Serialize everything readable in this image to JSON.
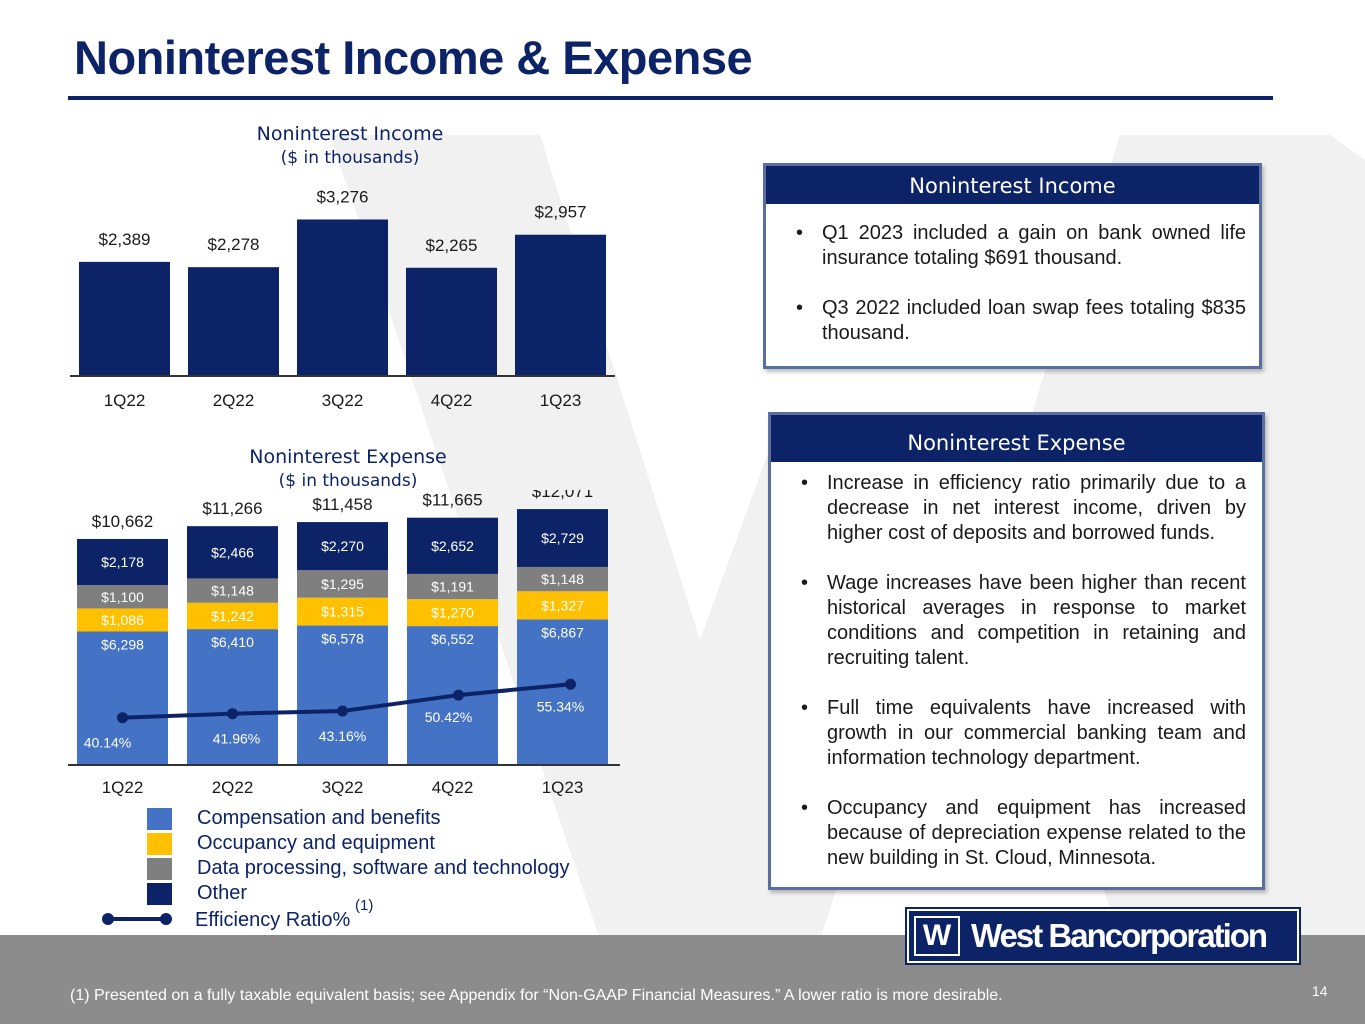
{
  "page": {
    "title": "Noninterest Income & Expense",
    "page_number": "14",
    "footnote": "(1) Presented on a fully taxable equivalent basis; see Appendix for “Non-GAAP Financial Measures.” A lower ratio is more desirable.",
    "logo_text": "West Bancorporation",
    "logo_mark": "W"
  },
  "colors": {
    "navy": "#0d2367",
    "compensation": "#4472c4",
    "occupancy": "#ffc000",
    "data_processing": "#7f7f7f",
    "other": "#0d2367",
    "footer_gray": "#8c8c8c"
  },
  "income_panel": {
    "heading": "Noninterest Income",
    "bullets": [
      "Q1 2023 included a gain on bank owned life insurance totaling $691 thousand.",
      "Q3 2022 included loan swap fees totaling $835 thousand."
    ]
  },
  "expense_panel": {
    "heading": "Noninterest Expense",
    "bullets": [
      "Increase in efficiency ratio primarily due to a decrease in net interest income, driven by higher cost of deposits and borrowed funds.",
      "Wage increases have been higher than recent historical averages in response to market conditions and competition in retaining and recruiting talent.",
      "Full time equivalents have increased with growth in our commercial banking team and information technology department.",
      "Occupancy and equipment has increased because of depreciation expense related to the new building in St. Cloud, Minnesota."
    ]
  },
  "legend": {
    "items": [
      {
        "label": "Compensation and benefits",
        "color": "#4472c4"
      },
      {
        "label": "Occupancy and equipment",
        "color": "#ffc000"
      },
      {
        "label": "Data processing, software and technology",
        "color": "#7f7f7f"
      },
      {
        "label": "Other",
        "color": "#0d2367"
      }
    ],
    "efficiency_label": "Efficiency Ratio%",
    "efficiency_sup": "(1)"
  },
  "chart_data": [
    {
      "type": "bar",
      "title": "Noninterest Income",
      "subtitle": "($ in thousands)",
      "categories": [
        "1Q22",
        "2Q22",
        "3Q22",
        "4Q22",
        "1Q23"
      ],
      "values": [
        2389,
        2278,
        3276,
        2265,
        2957
      ],
      "value_labels": [
        "$2,389",
        "$2,278",
        "$3,276",
        "$2,265",
        "$2,957"
      ],
      "ylim": [
        0,
        3600
      ],
      "grid": false,
      "color": "#0d2367"
    },
    {
      "type": "bar",
      "stacked": true,
      "title": "Noninterest Expense",
      "subtitle": "($ in thousands)",
      "categories": [
        "1Q22",
        "2Q22",
        "3Q22",
        "4Q22",
        "1Q23"
      ],
      "series": [
        {
          "name": "Compensation and benefits",
          "values": [
            6298,
            6410,
            6578,
            6552,
            6867
          ],
          "labels": [
            "$6,298",
            "$6,410",
            "$6,578",
            "$6,552",
            "$6,867"
          ],
          "color": "#4472c4"
        },
        {
          "name": "Occupancy and equipment",
          "values": [
            1086,
            1242,
            1315,
            1270,
            1327
          ],
          "labels": [
            "$1,086",
            "$1,242",
            "$1,315",
            "$1,270",
            "$1,327"
          ],
          "color": "#ffc000"
        },
        {
          "name": "Data processing, software and technology",
          "values": [
            1100,
            1148,
            1295,
            1191,
            1148
          ],
          "labels": [
            "$1,100",
            "$1,148",
            "$1,295",
            "$1,191",
            "$1,148"
          ],
          "color": "#7f7f7f"
        },
        {
          "name": "Other",
          "values": [
            2178,
            2466,
            2270,
            2652,
            2729
          ],
          "labels": [
            "$2,178",
            "$2,466",
            "$2,270",
            "$2,652",
            "$2,729"
          ],
          "color": "#0d2367"
        }
      ],
      "totals": [
        10662,
        11266,
        11458,
        11665,
        12071
      ],
      "total_labels": [
        "$10,662",
        "$11,266",
        "$11,458",
        "$11,665",
        "$12,071"
      ],
      "line_series": {
        "name": "Efficiency Ratio%",
        "values": [
          40.14,
          41.96,
          43.16,
          50.42,
          55.34
        ],
        "labels": [
          "40.14%",
          "41.96%",
          "43.16%",
          "50.42%",
          "55.34%"
        ],
        "ylim": [
          0,
          100
        ],
        "color": "#0d2367"
      },
      "ylim": [
        0,
        12500
      ],
      "grid": false,
      "legend_position": "bottom-left"
    }
  ]
}
